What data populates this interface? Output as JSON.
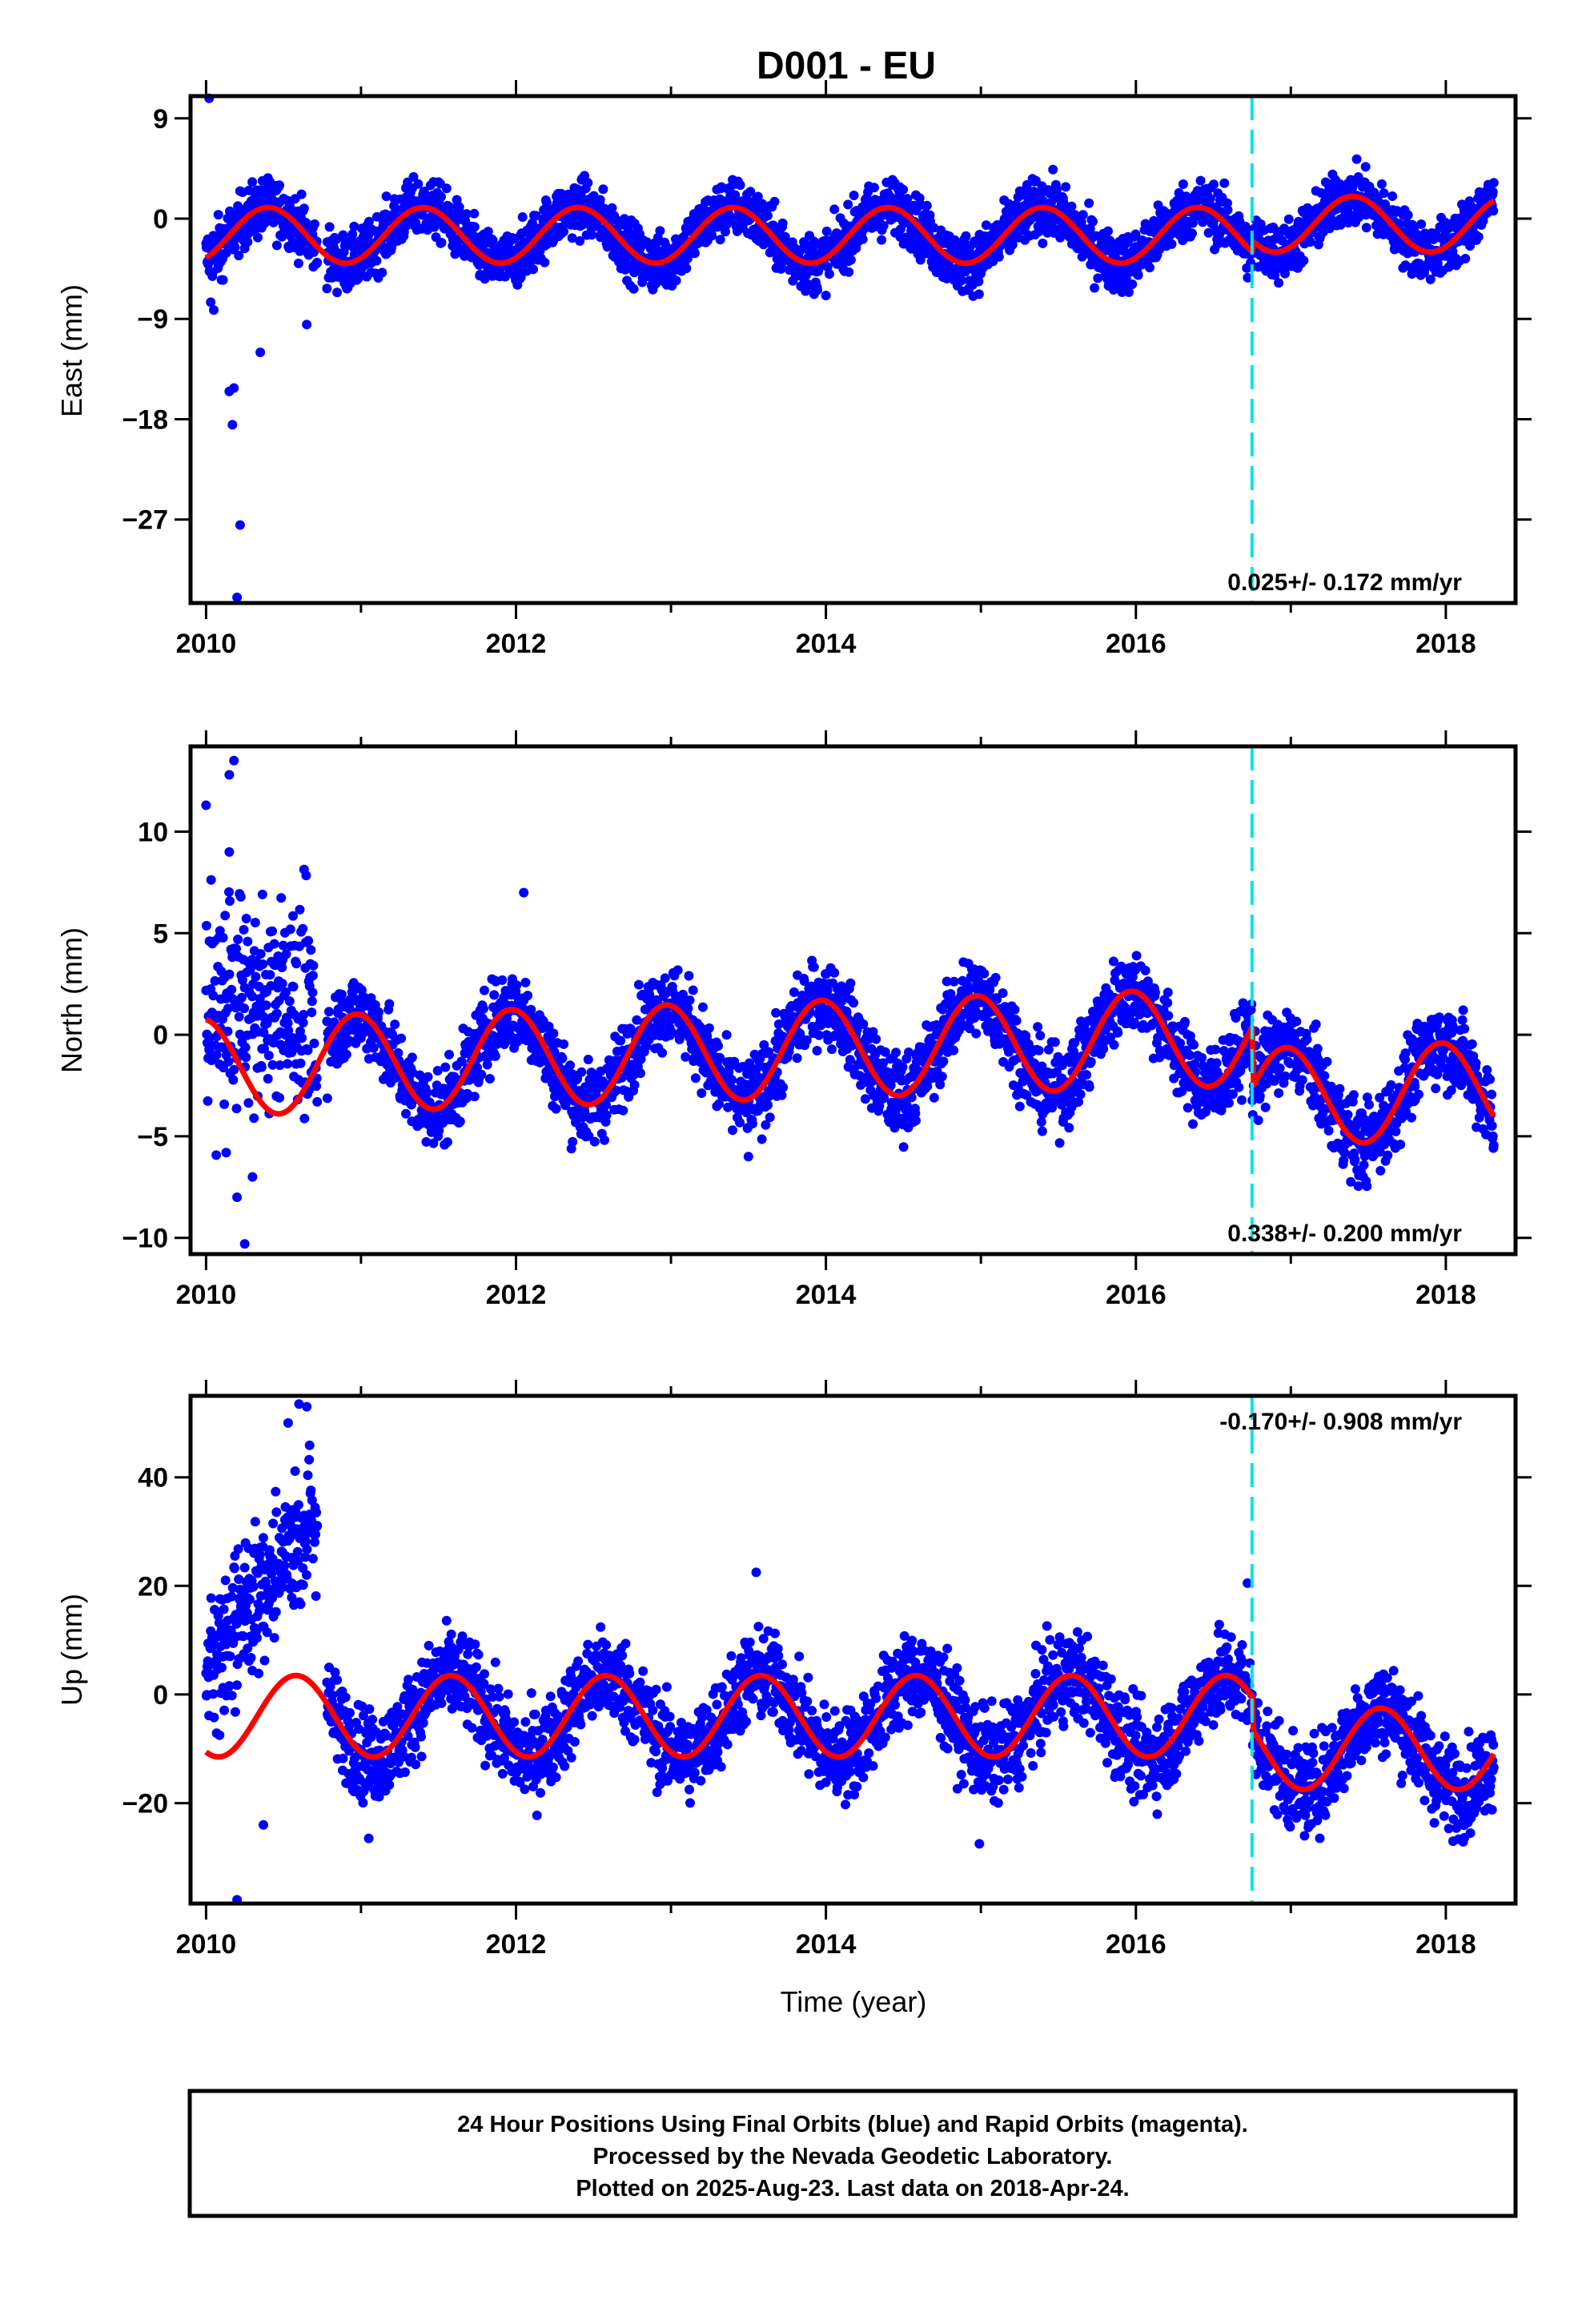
{
  "chart_data": {
    "type": "scatter",
    "title": "D001 - EU",
    "xlabel": "Time (year)",
    "xlim": [
      2009.9,
      2018.45
    ],
    "x_ticks": [
      "2010",
      "2012",
      "2014",
      "2016",
      "2018"
    ],
    "colors": {
      "points": "#0000ff",
      "model": "#ff0000",
      "offset_line": "#00e5e5"
    },
    "offset_marker_year": 2016.75,
    "panels": [
      {
        "name": "east",
        "ylabel": "East (mm)",
        "ylim": [
          -34.5,
          11
        ],
        "y_ticks": [
          9,
          0,
          -9,
          -18,
          -27
        ],
        "rate_text": "0.025+/- 0.172 mm/yr",
        "rate_position": "bottom-right",
        "model_amplitude_mm": 2.5,
        "model_phase_year": 2010.4,
        "model_offset_mm": 0.5,
        "outliers": [
          [
            2010.02,
            10.8
          ],
          [
            2010.03,
            -7.5
          ],
          [
            2010.05,
            -8.2
          ],
          [
            2010.15,
            -15.5
          ],
          [
            2010.17,
            -18.5
          ],
          [
            2010.22,
            -27.5
          ],
          [
            2010.2,
            -34.0
          ],
          [
            2010.18,
            -15.2
          ],
          [
            2010.35,
            -12.0
          ],
          [
            2010.65,
            -9.5
          ],
          [
            2010.1,
            -5.5
          ],
          [
            2010.08,
            -4.2
          ]
        ]
      },
      {
        "name": "north",
        "ylabel": "North (mm)",
        "ylim": [
          -10.8,
          14.2
        ],
        "y_ticks": [
          10,
          5,
          0,
          -5,
          -10
        ],
        "rate_text": "0.338+/- 0.200 mm/yr",
        "rate_position": "bottom-right",
        "model_amplitude_mm": 2.4,
        "model_phase_year": 2010.97,
        "model_offset_mm": -2.4,
        "outliers": [
          [
            2010.0,
            11.3
          ],
          [
            2010.18,
            13.5
          ],
          [
            2010.15,
            12.8
          ],
          [
            2010.15,
            9.0
          ],
          [
            2010.25,
            -10.3
          ],
          [
            2010.2,
            -8.0
          ],
          [
            2010.3,
            -7.0
          ],
          [
            2010.13,
            -5.8
          ],
          [
            2013.5,
            -6.0
          ],
          [
            2012.05,
            7.0
          ]
        ]
      },
      {
        "name": "up",
        "ylabel": "Up (mm)",
        "ylim": [
          -38.5,
          55
        ],
        "y_ticks": [
          40,
          20,
          0,
          -20
        ],
        "rate_text": "-0.170+/- 0.908 mm/yr",
        "rate_position": "top-right",
        "model_amplitude_mm": 7.5,
        "model_phase_year": 2010.58,
        "model_offset_mm": -7,
        "outliers": [
          [
            2010.2,
            -37.8
          ],
          [
            2010.37,
            -24.0
          ],
          [
            2014.99,
            -27.5
          ],
          [
            2011.05,
            -26.5
          ],
          [
            2016.72,
            20.5
          ],
          [
            2013.55,
            22.5
          ],
          [
            2010.6,
            53.5
          ],
          [
            2010.65,
            53.0
          ],
          [
            2010.53,
            50.0
          ]
        ]
      }
    ]
  },
  "footer": {
    "lines": [
      "24 Hour Positions Using Final Orbits (blue) and Rapid Orbits (magenta).",
      "Processed by the Nevada Geodetic Laboratory.",
      "Plotted on 2025-Aug-23. Last data on 2018-Apr-24."
    ]
  }
}
